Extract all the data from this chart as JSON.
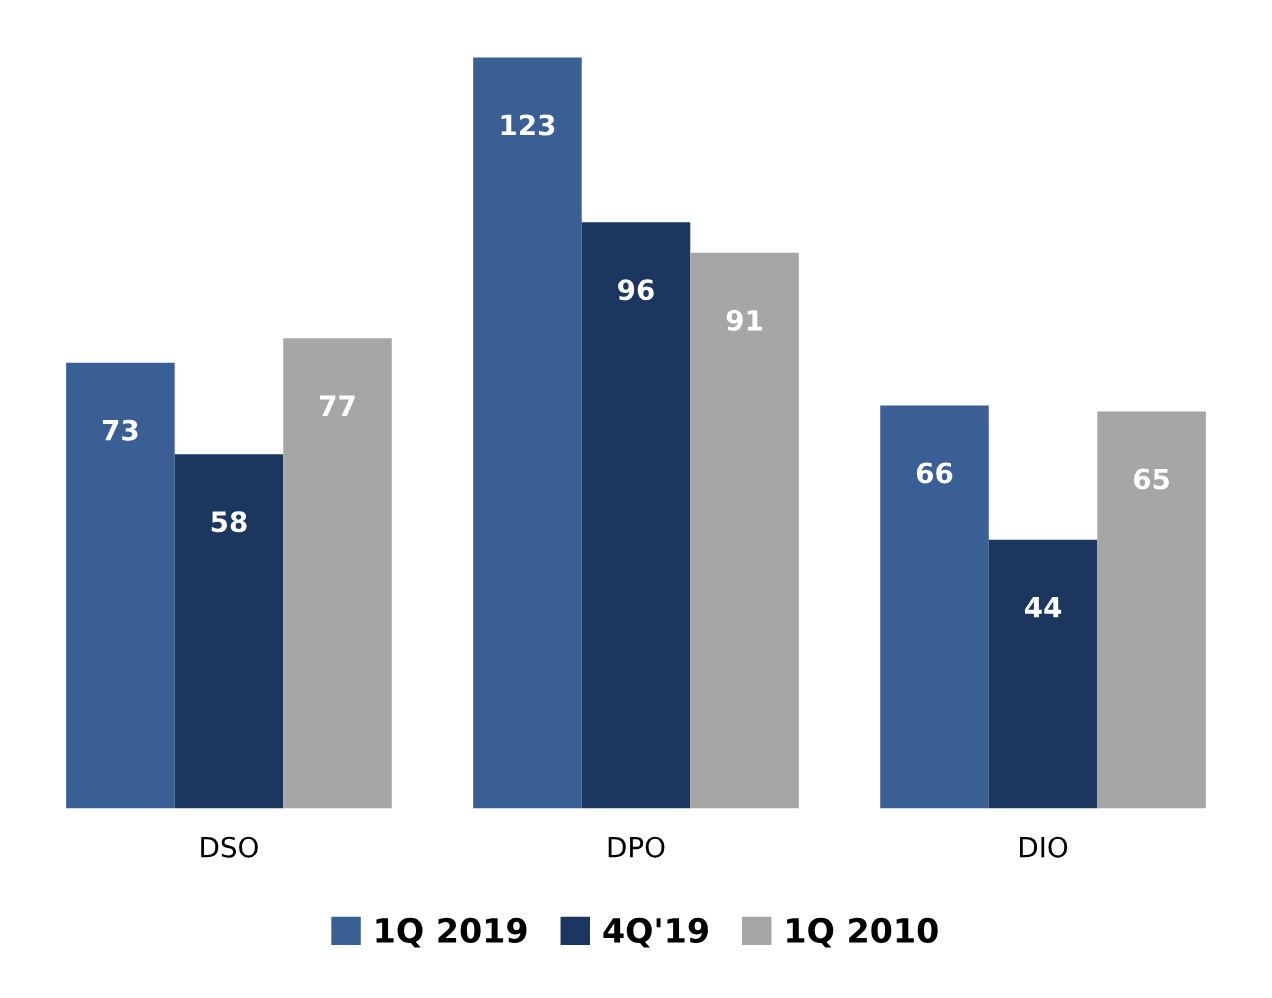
{
  "chart_data": {
    "type": "bar",
    "categories": [
      "DSO",
      "DPO",
      "DIO"
    ],
    "series": [
      {
        "name": "1Q 2019",
        "color": "#3a5f94",
        "values": [
          73,
          123,
          66
        ]
      },
      {
        "name": "4Q'19",
        "color": "#1b365f",
        "values": [
          58,
          96,
          44
        ]
      },
      {
        "name": "1Q 2010",
        "color": "#a6a6a6",
        "values": [
          77,
          91,
          65
        ]
      }
    ],
    "data_labels": true,
    "legend": "bottom",
    "grid": false,
    "tick_labels": "x"
  }
}
